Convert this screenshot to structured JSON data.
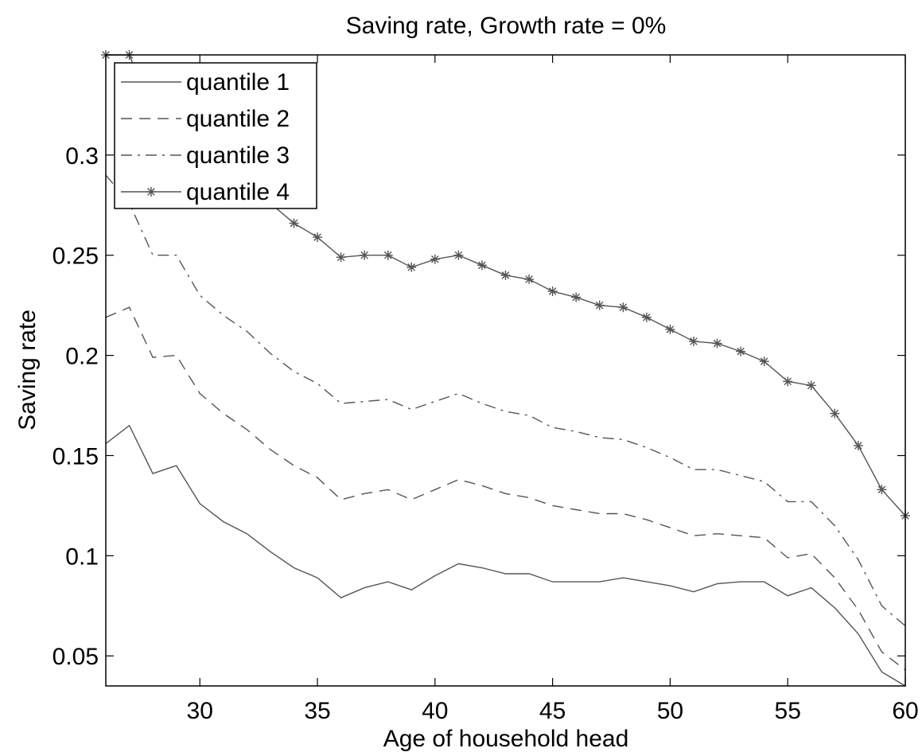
{
  "chart_data": {
    "type": "line",
    "title": "Saving rate, Growth rate = 0%",
    "xlabel": "Age of household head",
    "ylabel": "Saving rate",
    "xlim": [
      26,
      60
    ],
    "ylim": [
      0.035,
      0.35
    ],
    "xticks": [
      30,
      35,
      40,
      45,
      50,
      55,
      60
    ],
    "yticks": [
      0.05,
      0.1,
      0.15,
      0.2,
      0.25,
      0.3
    ],
    "ytick_labels": [
      "0.05",
      "0.1",
      "0.15",
      "0.2",
      "0.25",
      "0.3"
    ],
    "grid": false,
    "legend_position": "top-left",
    "line_color": "#555555",
    "x": [
      26,
      27,
      28,
      29,
      30,
      31,
      32,
      33,
      34,
      35,
      36,
      37,
      38,
      39,
      40,
      41,
      42,
      43,
      44,
      45,
      46,
      47,
      48,
      49,
      50,
      51,
      52,
      53,
      54,
      55,
      56,
      57,
      58,
      59,
      60
    ],
    "series": [
      {
        "name": "quantile 1",
        "style": "solid",
        "values": [
          0.156,
          0.165,
          0.141,
          0.145,
          0.126,
          0.117,
          0.111,
          0.102,
          0.094,
          0.089,
          0.079,
          0.084,
          0.087,
          0.083,
          0.09,
          0.096,
          0.094,
          0.091,
          0.091,
          0.087,
          0.087,
          0.087,
          0.089,
          0.087,
          0.085,
          0.082,
          0.086,
          0.087,
          0.087,
          0.08,
          0.084,
          0.074,
          0.061,
          0.042,
          0.035
        ]
      },
      {
        "name": "quantile 2",
        "style": "dashed",
        "values": [
          0.219,
          0.224,
          0.199,
          0.2,
          0.181,
          0.171,
          0.163,
          0.153,
          0.145,
          0.139,
          0.128,
          0.131,
          0.133,
          0.128,
          0.133,
          0.138,
          0.135,
          0.131,
          0.129,
          0.125,
          0.123,
          0.121,
          0.121,
          0.118,
          0.114,
          0.11,
          0.111,
          0.11,
          0.109,
          0.099,
          0.101,
          0.089,
          0.073,
          0.052,
          0.043
        ]
      },
      {
        "name": "quantile 3",
        "style": "dashdot",
        "values": [
          0.29,
          0.276,
          0.25,
          0.25,
          0.23,
          0.22,
          0.212,
          0.201,
          0.192,
          0.186,
          0.176,
          0.177,
          0.178,
          0.173,
          0.177,
          0.181,
          0.176,
          0.172,
          0.17,
          0.164,
          0.162,
          0.159,
          0.158,
          0.154,
          0.149,
          0.143,
          0.143,
          0.14,
          0.137,
          0.127,
          0.127,
          0.115,
          0.098,
          0.075,
          0.065
        ]
      },
      {
        "name": "quantile 4",
        "style": "solid-star",
        "values": [
          0.35,
          0.35,
          0.32,
          0.31,
          0.3,
          0.29,
          0.283,
          0.276,
          0.266,
          0.259,
          0.249,
          0.25,
          0.25,
          0.244,
          0.248,
          0.25,
          0.245,
          0.24,
          0.238,
          0.232,
          0.229,
          0.225,
          0.224,
          0.219,
          0.213,
          0.207,
          0.206,
          0.202,
          0.197,
          0.187,
          0.185,
          0.171,
          0.155,
          0.133,
          0.12
        ]
      }
    ]
  }
}
